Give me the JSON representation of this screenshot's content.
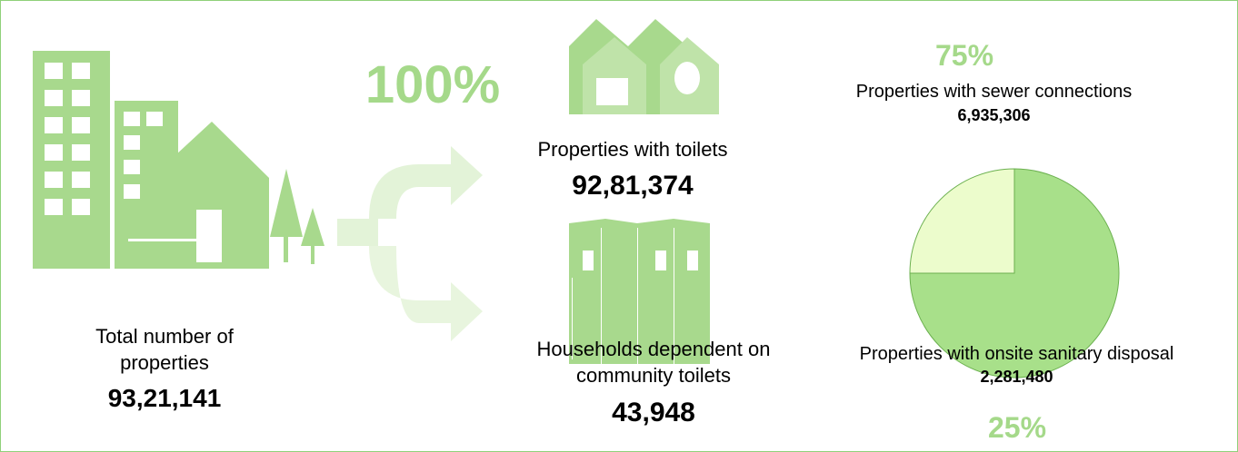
{
  "total": {
    "label": "Total number of properties",
    "value": "93,21,141"
  },
  "toilets": {
    "percent": "100%",
    "label": "Properties with toilets",
    "value": "92,81,374"
  },
  "community": {
    "label": "Households dependent on community toilets",
    "value": "43,948"
  },
  "chart_data": {
    "type": "pie",
    "categories": [
      "Properties with sewer connections",
      "Properties with onsite sanitary disposal"
    ],
    "values": [
      75,
      25
    ],
    "value_labels": [
      "75%",
      "25%"
    ],
    "count_labels": [
      "6,935,306",
      "2,281,480"
    ],
    "colors": [
      "#a8e08a",
      "#ecfccc"
    ]
  }
}
